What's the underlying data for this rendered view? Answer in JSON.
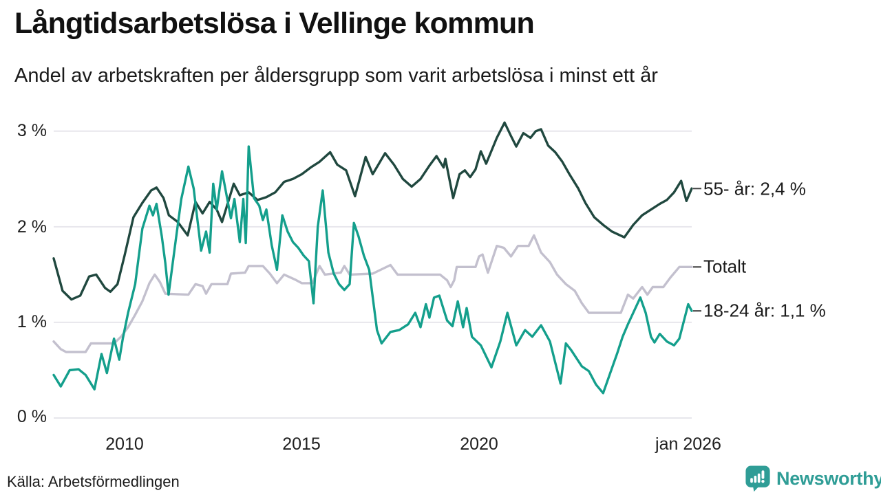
{
  "header": {
    "title": "Långtidsarbetslösa i Vellinge kommun",
    "subtitle": "Andel av arbetskraften per åldersgrupp som varit arbetslösa i minst ett år"
  },
  "footer": {
    "source": "Källa: Arbetsförmedlingen",
    "brand": "Newsworthy",
    "brand_color": "#2f9d96"
  },
  "chart_data": {
    "type": "line",
    "title": "Långtidsarbetslösa i Vellinge kommun",
    "subtitle": "Andel av arbetskraften per åldersgrupp som varit arbetslösa i minst ett år",
    "unit": "% av arbetskraften",
    "grid": true,
    "legend_position": "right-of-line-ends",
    "x_range": [
      2008,
      2026
    ],
    "y_range": [
      0,
      3
    ],
    "yaxis": {
      "values": [
        3,
        2,
        1,
        0
      ],
      "labels": [
        "3 %",
        "2 %",
        "1 %",
        "0 %"
      ]
    },
    "xaxis": {
      "tick_years": [
        2010,
        2015,
        2020,
        2026
      ],
      "tick_labels": [
        "2010",
        "2015",
        "2020",
        "jan 2026"
      ]
    },
    "series": [
      {
        "name": "55- år",
        "label": "55- år: 2,4 %",
        "end_value": "2,4 %",
        "color": "#20483f",
        "points": [
          [
            2008.0,
            1.67
          ],
          [
            2008.25,
            1.33
          ],
          [
            2008.5,
            1.24
          ],
          [
            2008.75,
            1.28
          ],
          [
            2009.0,
            1.48
          ],
          [
            2009.2,
            1.5
          ],
          [
            2009.45,
            1.36
          ],
          [
            2009.6,
            1.32
          ],
          [
            2009.8,
            1.4
          ],
          [
            2010.0,
            1.7
          ],
          [
            2010.25,
            2.1
          ],
          [
            2010.5,
            2.25
          ],
          [
            2010.75,
            2.38
          ],
          [
            2010.9,
            2.41
          ],
          [
            2011.1,
            2.3
          ],
          [
            2011.25,
            2.12
          ],
          [
            2011.5,
            2.05
          ],
          [
            2011.78,
            1.91
          ],
          [
            2012.0,
            2.26
          ],
          [
            2012.2,
            2.14
          ],
          [
            2012.4,
            2.26
          ],
          [
            2012.6,
            2.18
          ],
          [
            2012.75,
            2.05
          ],
          [
            2013.08,
            2.45
          ],
          [
            2013.25,
            2.33
          ],
          [
            2013.5,
            2.36
          ],
          [
            2013.75,
            2.28
          ],
          [
            2014.0,
            2.31
          ],
          [
            2014.25,
            2.36
          ],
          [
            2014.5,
            2.47
          ],
          [
            2014.75,
            2.5
          ],
          [
            2015.0,
            2.55
          ],
          [
            2015.25,
            2.62
          ],
          [
            2015.5,
            2.68
          ],
          [
            2015.8,
            2.78
          ],
          [
            2016.0,
            2.65
          ],
          [
            2016.25,
            2.59
          ],
          [
            2016.5,
            2.32
          ],
          [
            2016.8,
            2.73
          ],
          [
            2017.0,
            2.55
          ],
          [
            2017.35,
            2.77
          ],
          [
            2017.6,
            2.65
          ],
          [
            2017.85,
            2.5
          ],
          [
            2018.1,
            2.42
          ],
          [
            2018.35,
            2.5
          ],
          [
            2018.6,
            2.64
          ],
          [
            2018.8,
            2.74
          ],
          [
            2019.0,
            2.62
          ],
          [
            2019.05,
            2.71
          ],
          [
            2019.27,
            2.3
          ],
          [
            2019.45,
            2.55
          ],
          [
            2019.6,
            2.59
          ],
          [
            2019.75,
            2.52
          ],
          [
            2019.9,
            2.6
          ],
          [
            2020.05,
            2.79
          ],
          [
            2020.2,
            2.66
          ],
          [
            2020.5,
            2.93
          ],
          [
            2020.72,
            3.09
          ],
          [
            2020.9,
            2.95
          ],
          [
            2021.05,
            2.84
          ],
          [
            2021.25,
            2.98
          ],
          [
            2021.45,
            2.93
          ],
          [
            2021.6,
            3.0
          ],
          [
            2021.75,
            3.02
          ],
          [
            2021.95,
            2.85
          ],
          [
            2022.15,
            2.78
          ],
          [
            2022.35,
            2.68
          ],
          [
            2022.55,
            2.55
          ],
          [
            2022.8,
            2.4
          ],
          [
            2023.0,
            2.25
          ],
          [
            2023.25,
            2.1
          ],
          [
            2023.5,
            2.02
          ],
          [
            2023.75,
            1.95
          ],
          [
            2024.1,
            1.89
          ],
          [
            2024.35,
            2.02
          ],
          [
            2024.6,
            2.12
          ],
          [
            2024.85,
            2.18
          ],
          [
            2025.1,
            2.24
          ],
          [
            2025.3,
            2.28
          ],
          [
            2025.5,
            2.36
          ],
          [
            2025.7,
            2.48
          ],
          [
            2025.85,
            2.27
          ],
          [
            2026.0,
            2.4
          ]
        ]
      },
      {
        "name": "Totalt",
        "label": "Totalt",
        "end_value": "1,6 %",
        "color": "#c3c0ce",
        "points": [
          [
            2008.0,
            0.8
          ],
          [
            2008.2,
            0.72
          ],
          [
            2008.35,
            0.69
          ],
          [
            2008.9,
            0.69
          ],
          [
            2009.05,
            0.78
          ],
          [
            2009.7,
            0.78
          ],
          [
            2009.9,
            0.85
          ],
          [
            2010.1,
            0.95
          ],
          [
            2010.3,
            1.08
          ],
          [
            2010.5,
            1.22
          ],
          [
            2010.7,
            1.41
          ],
          [
            2010.85,
            1.5
          ],
          [
            2011.0,
            1.42
          ],
          [
            2011.15,
            1.3
          ],
          [
            2011.8,
            1.29
          ],
          [
            2012.0,
            1.4
          ],
          [
            2012.2,
            1.38
          ],
          [
            2012.3,
            1.3
          ],
          [
            2012.45,
            1.4
          ],
          [
            2012.9,
            1.4
          ],
          [
            2013.0,
            1.51
          ],
          [
            2013.4,
            1.52
          ],
          [
            2013.5,
            1.59
          ],
          [
            2013.9,
            1.59
          ],
          [
            2014.1,
            1.51
          ],
          [
            2014.3,
            1.41
          ],
          [
            2014.5,
            1.5
          ],
          [
            2014.8,
            1.45
          ],
          [
            2015.0,
            1.41
          ],
          [
            2015.3,
            1.41
          ],
          [
            2015.5,
            1.59
          ],
          [
            2015.65,
            1.5
          ],
          [
            2016.1,
            1.52
          ],
          [
            2016.2,
            1.59
          ],
          [
            2016.35,
            1.5
          ],
          [
            2017.0,
            1.51
          ],
          [
            2017.5,
            1.6
          ],
          [
            2017.7,
            1.5
          ],
          [
            2018.9,
            1.5
          ],
          [
            2019.1,
            1.44
          ],
          [
            2019.2,
            1.37
          ],
          [
            2019.3,
            1.44
          ],
          [
            2019.37,
            1.58
          ],
          [
            2019.9,
            1.58
          ],
          [
            2020.0,
            1.69
          ],
          [
            2020.1,
            1.71
          ],
          [
            2020.25,
            1.52
          ],
          [
            2020.5,
            1.8
          ],
          [
            2020.7,
            1.78
          ],
          [
            2020.9,
            1.69
          ],
          [
            2021.1,
            1.8
          ],
          [
            2021.4,
            1.8
          ],
          [
            2021.55,
            1.91
          ],
          [
            2021.75,
            1.73
          ],
          [
            2022.0,
            1.63
          ],
          [
            2022.2,
            1.5
          ],
          [
            2022.45,
            1.4
          ],
          [
            2022.7,
            1.33
          ],
          [
            2022.9,
            1.2
          ],
          [
            2023.1,
            1.1
          ],
          [
            2024.0,
            1.1
          ],
          [
            2024.2,
            1.29
          ],
          [
            2024.35,
            1.25
          ],
          [
            2024.6,
            1.37
          ],
          [
            2024.75,
            1.29
          ],
          [
            2024.9,
            1.37
          ],
          [
            2025.2,
            1.37
          ],
          [
            2025.4,
            1.47
          ],
          [
            2025.65,
            1.58
          ],
          [
            2026.0,
            1.58
          ]
        ]
      },
      {
        "name": "18-24 år",
        "label": "18-24 år: 1,1 %",
        "end_value": "1,1 %",
        "color": "#149f8c",
        "points": [
          [
            2008.0,
            0.45
          ],
          [
            2008.2,
            0.33
          ],
          [
            2008.45,
            0.5
          ],
          [
            2008.7,
            0.51
          ],
          [
            2008.9,
            0.45
          ],
          [
            2009.05,
            0.36
          ],
          [
            2009.15,
            0.3
          ],
          [
            2009.35,
            0.67
          ],
          [
            2009.5,
            0.47
          ],
          [
            2009.7,
            0.83
          ],
          [
            2009.85,
            0.61
          ],
          [
            2009.95,
            0.83
          ],
          [
            2010.1,
            1.1
          ],
          [
            2010.3,
            1.4
          ],
          [
            2010.5,
            1.98
          ],
          [
            2010.7,
            2.22
          ],
          [
            2010.8,
            2.12
          ],
          [
            2010.9,
            2.24
          ],
          [
            2011.05,
            1.9
          ],
          [
            2011.15,
            1.62
          ],
          [
            2011.24,
            1.29
          ],
          [
            2011.45,
            1.88
          ],
          [
            2011.6,
            2.29
          ],
          [
            2011.8,
            2.63
          ],
          [
            2011.95,
            2.4
          ],
          [
            2012.16,
            1.75
          ],
          [
            2012.3,
            1.95
          ],
          [
            2012.4,
            1.73
          ],
          [
            2012.5,
            2.45
          ],
          [
            2012.6,
            2.18
          ],
          [
            2012.75,
            2.58
          ],
          [
            2013.0,
            2.09
          ],
          [
            2013.1,
            2.29
          ],
          [
            2013.25,
            1.84
          ],
          [
            2013.35,
            2.29
          ],
          [
            2013.42,
            1.83
          ],
          [
            2013.5,
            2.84
          ],
          [
            2013.65,
            2.3
          ],
          [
            2013.8,
            2.22
          ],
          [
            2013.9,
            2.07
          ],
          [
            2014.0,
            2.18
          ],
          [
            2014.15,
            1.81
          ],
          [
            2014.3,
            1.55
          ],
          [
            2014.45,
            2.12
          ],
          [
            2014.6,
            1.95
          ],
          [
            2014.75,
            1.84
          ],
          [
            2014.9,
            1.78
          ],
          [
            2015.05,
            1.7
          ],
          [
            2015.2,
            1.64
          ],
          [
            2015.33,
            1.2
          ],
          [
            2015.45,
            2.0
          ],
          [
            2015.59,
            2.38
          ],
          [
            2015.75,
            1.73
          ],
          [
            2015.9,
            1.51
          ],
          [
            2016.05,
            1.4
          ],
          [
            2016.2,
            1.34
          ],
          [
            2016.35,
            1.4
          ],
          [
            2016.47,
            2.04
          ],
          [
            2016.6,
            1.9
          ],
          [
            2016.75,
            1.7
          ],
          [
            2016.9,
            1.55
          ],
          [
            2017.12,
            0.92
          ],
          [
            2017.25,
            0.78
          ],
          [
            2017.5,
            0.9
          ],
          [
            2017.75,
            0.92
          ],
          [
            2018.0,
            0.98
          ],
          [
            2018.2,
            1.1
          ],
          [
            2018.35,
            0.95
          ],
          [
            2018.5,
            1.19
          ],
          [
            2018.6,
            1.05
          ],
          [
            2018.73,
            1.26
          ],
          [
            2018.88,
            1.28
          ],
          [
            2019.1,
            1.02
          ],
          [
            2019.25,
            0.96
          ],
          [
            2019.4,
            1.22
          ],
          [
            2019.55,
            0.95
          ],
          [
            2019.65,
            1.15
          ],
          [
            2019.8,
            0.85
          ],
          [
            2020.05,
            0.76
          ],
          [
            2020.35,
            0.53
          ],
          [
            2020.6,
            0.8
          ],
          [
            2020.8,
            1.1
          ],
          [
            2021.05,
            0.76
          ],
          [
            2021.3,
            0.92
          ],
          [
            2021.5,
            0.85
          ],
          [
            2021.75,
            0.97
          ],
          [
            2022.0,
            0.8
          ],
          [
            2022.3,
            0.36
          ],
          [
            2022.45,
            0.78
          ],
          [
            2022.6,
            0.71
          ],
          [
            2022.9,
            0.54
          ],
          [
            2023.1,
            0.49
          ],
          [
            2023.3,
            0.35
          ],
          [
            2023.5,
            0.26
          ],
          [
            2023.7,
            0.47
          ],
          [
            2023.9,
            0.68
          ],
          [
            2024.05,
            0.85
          ],
          [
            2024.2,
            0.98
          ],
          [
            2024.55,
            1.26
          ],
          [
            2024.7,
            1.1
          ],
          [
            2024.85,
            0.85
          ],
          [
            2024.95,
            0.79
          ],
          [
            2025.1,
            0.88
          ],
          [
            2025.3,
            0.8
          ],
          [
            2025.5,
            0.76
          ],
          [
            2025.65,
            0.83
          ],
          [
            2025.9,
            1.19
          ],
          [
            2026.0,
            1.12
          ]
        ]
      }
    ]
  }
}
